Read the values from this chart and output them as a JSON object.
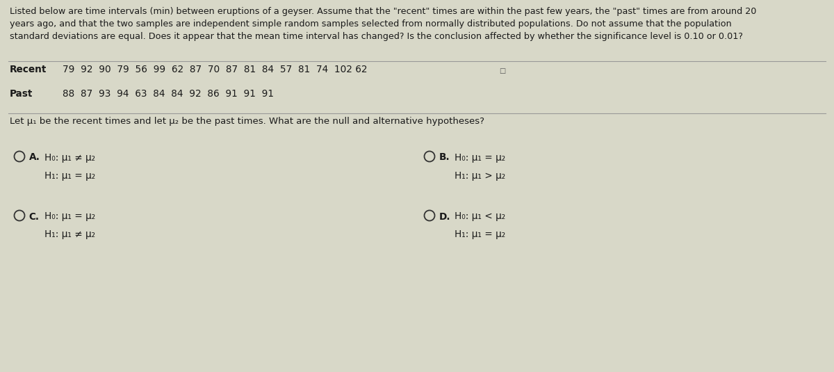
{
  "bg_color": "#d8d8c8",
  "text_color": "#1a1a1a",
  "title_text": "Listed below are time intervals (min) between eruptions of a geyser. Assume that the \"recent\" times are within the past few years, the \"past\" times are from around 20\nyears ago, and that the two samples are independent simple random samples selected from normally distributed populations. Do not assume that the population\nstandard deviations are equal. Does it appear that the mean time interval has changed? Is the conclusion affected by whether the significance level is 0.10 or 0.01?",
  "recent_label": "Recent",
  "recent_data": "79  92  90  79  56  99  62  87  70  87  81  84  57  81  74  102 62",
  "past_label": "Past",
  "past_data": "88  87  93  94  63  84  84  92  86  91  91  91",
  "let_text": "Let μ₁ be the recent times and let μ₂ be the past times. What are the null and alternative hypotheses?",
  "option_A_label": "A.",
  "option_A_line1": "H₀: μ₁ ≠ μ₂",
  "option_A_line2": "H₁: μ₁ = μ₂",
  "option_B_label": "B.",
  "option_B_line1": "H₀: μ₁ = μ₂",
  "option_B_line2": "H₁: μ₁ > μ₂",
  "option_C_label": "C.",
  "option_C_line1": "H₀: μ₁ = μ₂",
  "option_C_line2": "H₁: μ₁ ≠ μ₂",
  "option_D_label": "D.",
  "option_D_line1": "H₀: μ₁ < μ₂",
  "option_D_line2": "H₁: μ₁ = μ₂",
  "title_fontsize": 9.2,
  "data_label_fontsize": 9.8,
  "data_fontsize": 9.8,
  "let_fontsize": 9.5,
  "option_fontsize": 9.8
}
